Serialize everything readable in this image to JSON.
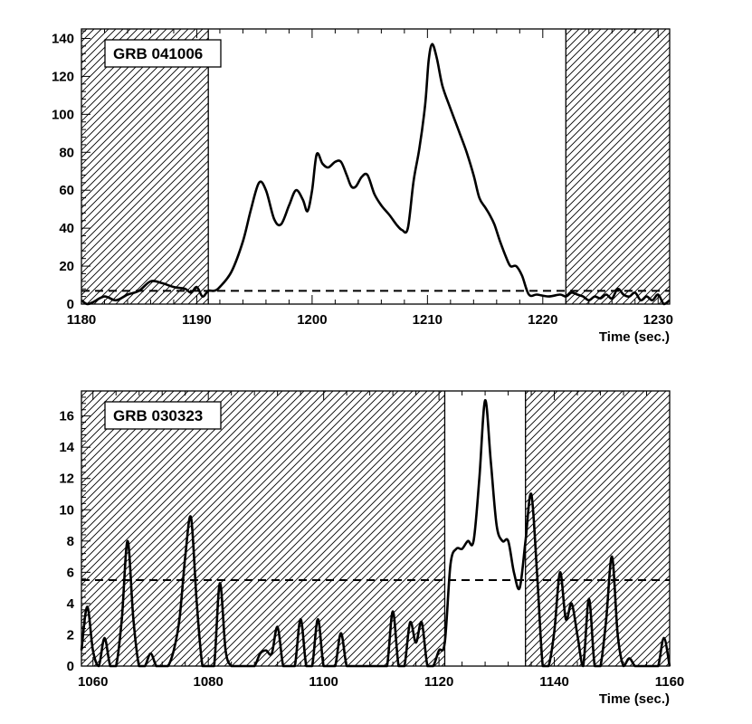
{
  "chart_data": [
    {
      "type": "line",
      "label": "GRB 041006",
      "xlabel": "Time (sec.)",
      "ylabel": "",
      "xlim": [
        1180,
        1231
      ],
      "ylim": [
        0,
        145
      ],
      "x_ticks": [
        1180,
        1190,
        1200,
        1210,
        1220,
        1230
      ],
      "y_ticks": [
        0,
        20,
        40,
        60,
        80,
        100,
        120,
        140
      ],
      "threshold": 7,
      "hatched_regions": [
        [
          1180,
          1191
        ],
        [
          1222,
          1231
        ]
      ],
      "series": [
        {
          "x": [
            1180,
            1180.5,
            1181,
            1182,
            1183,
            1184,
            1185,
            1186,
            1187,
            1188,
            1189,
            1189.5,
            1190,
            1190.5,
            1191,
            1191.5,
            1192,
            1193,
            1194,
            1194.7,
            1195.4,
            1196,
            1196.7,
            1197.3,
            1198,
            1198.6,
            1199.2,
            1199.6,
            1200,
            1200.4,
            1200.9,
            1201.4,
            1202,
            1202.5,
            1203,
            1203.4,
            1203.8,
            1204.3,
            1204.8,
            1205.4,
            1206,
            1206.7,
            1207.3,
            1207.8,
            1208.3,
            1208.8,
            1209.3,
            1209.8,
            1210.1,
            1210.4,
            1210.8,
            1211.3,
            1212,
            1212.8,
            1213.4,
            1214,
            1214.5,
            1215,
            1215.4,
            1215.8,
            1216.3,
            1216.8,
            1217.2,
            1217.7,
            1218.2,
            1218.8,
            1219.5,
            1220.5,
            1221.5,
            1222,
            1222.5,
            1223,
            1223.5,
            1224,
            1224.5,
            1225,
            1225.5,
            1226,
            1226.5,
            1227,
            1227.5,
            1228,
            1228.5,
            1229,
            1229.5,
            1230,
            1230.5,
            1231
          ],
          "y": [
            2,
            0,
            1,
            4,
            2,
            5,
            7,
            12,
            11,
            9,
            8,
            6,
            9,
            4,
            7,
            7,
            9,
            17,
            33,
            50,
            64,
            60,
            45,
            42,
            52,
            60,
            55,
            49,
            60,
            79,
            74,
            72,
            75,
            75,
            68,
            62,
            62,
            67,
            68,
            58,
            52,
            47,
            42,
            39,
            40,
            65,
            82,
            105,
            128,
            137,
            130,
            115,
            103,
            90,
            80,
            68,
            56,
            51,
            47,
            42,
            33,
            25,
            20,
            20,
            15,
            5,
            5,
            4,
            5,
            4,
            6,
            5,
            4,
            2,
            4,
            3,
            5,
            3,
            8,
            5,
            4,
            6,
            2,
            4,
            2,
            5,
            0,
            2
          ],
          "name": ""
        }
      ]
    },
    {
      "type": "line",
      "label": "GRB 030323",
      "xlabel": "Time (sec.)",
      "ylabel": "",
      "xlim": [
        1058,
        1160
      ],
      "ylim": [
        0,
        17.6
      ],
      "x_ticks": [
        1060,
        1080,
        1100,
        1120,
        1140,
        1160
      ],
      "y_ticks": [
        0,
        2,
        4,
        6,
        8,
        10,
        12,
        14,
        16
      ],
      "threshold": 5.5,
      "hatched_regions": [
        [
          1058,
          1121
        ],
        [
          1135,
          1160
        ]
      ],
      "series": [
        {
          "x": [
            1058,
            1059,
            1060,
            1061,
            1062,
            1063,
            1064,
            1065,
            1066,
            1067,
            1068,
            1069,
            1070,
            1071,
            1072,
            1073,
            1074,
            1075,
            1076,
            1077,
            1078,
            1079,
            1080,
            1081,
            1082,
            1083,
            1084,
            1085,
            1086,
            1087,
            1088,
            1089,
            1090,
            1091,
            1092,
            1093,
            1094,
            1095,
            1096,
            1097,
            1098,
            1099,
            1100,
            1101,
            1102,
            1103,
            1104,
            1105,
            1106,
            1107,
            1108,
            1109,
            1110,
            1111,
            1112,
            1113,
            1114,
            1115,
            1116,
            1117,
            1118,
            1119,
            1120,
            1121,
            1122,
            1123,
            1124,
            1125,
            1126,
            1127,
            1128,
            1129,
            1130,
            1131,
            1132,
            1133,
            1134,
            1135,
            1136,
            1137,
            1138,
            1139,
            1140,
            1141,
            1142,
            1143,
            1144,
            1145,
            1146,
            1147,
            1148,
            1149,
            1150,
            1151,
            1152,
            1153,
            1154,
            1155,
            1156,
            1157,
            1158,
            1159,
            1160
          ],
          "y": [
            1,
            3.8,
            1,
            0,
            1.8,
            0,
            0,
            3,
            8,
            3,
            0,
            0,
            0.8,
            0,
            0,
            0,
            1,
            3,
            7,
            9.5,
            4,
            0,
            0,
            0,
            5.3,
            1,
            0,
            0,
            0,
            0,
            0,
            0.8,
            1,
            0.8,
            2.5,
            0,
            0,
            0,
            3,
            0,
            0,
            3,
            0,
            0,
            0,
            2.1,
            0,
            0,
            0,
            0,
            0,
            0,
            0,
            0,
            3.5,
            0,
            0,
            2.8,
            1.5,
            2.8,
            0,
            0,
            1,
            1.5,
            6.5,
            7.5,
            7.5,
            8,
            8,
            12,
            17,
            13,
            9,
            8,
            8,
            6,
            5,
            8,
            11,
            6,
            0,
            0,
            2.2,
            6,
            3,
            4,
            2,
            0,
            4.3,
            0,
            0,
            3,
            7,
            2,
            0,
            0.5,
            0,
            0,
            0,
            0,
            0,
            1.8,
            0
          ],
          "name": ""
        }
      ]
    }
  ]
}
